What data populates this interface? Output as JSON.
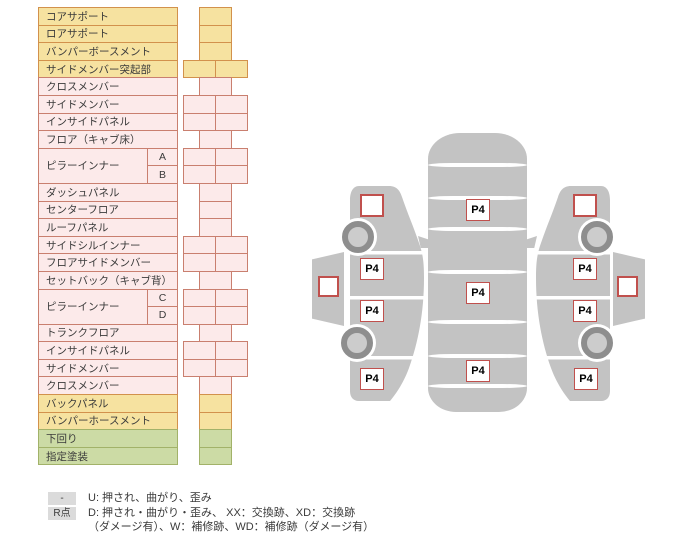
{
  "colors": {
    "yellow_bg": "#F6E2A0",
    "yellow_border": "#D2914C",
    "pink_bg": "#FCEAEA",
    "pink_border": "#C97F6F",
    "green_bg": "#CCDBA5",
    "green_border": "#A2B269",
    "marker_border": "#C0504D",
    "car_gray": "#C3C3C3",
    "wheel_ring": "#8E8E8E",
    "wheel_hub": "#CCCCCC",
    "badge_bg": "#DBDBDB",
    "text": "#3A3A3A"
  },
  "table": {
    "rows": [
      {
        "label": "コアサポート",
        "group": "yellow",
        "cells": 1
      },
      {
        "label": "ロアサポート",
        "group": "yellow",
        "cells": 1
      },
      {
        "label": "バンパーボースメント",
        "group": "yellow",
        "cells": 1
      },
      {
        "label": "サイドメンバー突起部",
        "group": "yellow",
        "cells": 2
      },
      {
        "label": "クロスメンバー",
        "group": "pink",
        "cells": 1
      },
      {
        "label": "サイドメンバー",
        "group": "pink",
        "cells": 2
      },
      {
        "label": "インサイドパネル",
        "group": "pink",
        "cells": 2
      },
      {
        "label": "フロア（キャブ床）",
        "group": "pink",
        "cells": 1
      },
      {
        "label": "ピラーインナー",
        "sub": [
          "A",
          "B"
        ],
        "group": "pink",
        "cells": 2
      },
      {
        "label": "ダッシュパネル",
        "group": "pink",
        "cells": 1
      },
      {
        "label": "センターフロア",
        "group": "pink",
        "cells": 1
      },
      {
        "label": "ルーフパネル",
        "group": "pink",
        "cells": 1
      },
      {
        "label": "サイドシルインナー",
        "group": "pink",
        "cells": 2
      },
      {
        "label": "フロアサイドメンバー",
        "group": "pink",
        "cells": 2
      },
      {
        "label": "セットバック（キャブ背）",
        "group": "pink",
        "cells": 1
      },
      {
        "label": "ピラーインナー",
        "sub": [
          "C",
          "D"
        ],
        "group": "pink",
        "cells": 2
      },
      {
        "label": "トランクフロア",
        "group": "pink",
        "cells": 1
      },
      {
        "label": "インサイドパネル",
        "group": "pink",
        "cells": 2
      },
      {
        "label": "サイドメンバー",
        "group": "pink",
        "cells": 2
      },
      {
        "label": "クロスメンバー",
        "group": "pink",
        "cells": 1
      },
      {
        "label": "バックパネル",
        "group": "yellow",
        "cells": 1
      },
      {
        "label": "バンパーホースメント",
        "group": "yellow",
        "cells": 1
      },
      {
        "label": "下回り",
        "group": "green",
        "cells": 1
      },
      {
        "label": "指定塗装",
        "group": "green",
        "cells": 1
      }
    ]
  },
  "legend": {
    "items": [
      {
        "badge": "-",
        "lines": [
          "U: 押され、曲がり、歪み"
        ]
      },
      {
        "badge": "R点",
        "lines": [
          "D: 押され・曲がり・歪み、 XX：交換跡、XD：交換跡",
          "（ダメージ有）、W：補修跡、WD：補修跡（ダメージ有）"
        ]
      }
    ]
  },
  "diagram": {
    "markers": {
      "center": [
        "P4",
        "P4",
        "P4"
      ],
      "left_side": [
        "P4",
        "P4",
        "P4"
      ],
      "right_side": [
        "P4",
        "P4",
        "P4"
      ]
    }
  }
}
